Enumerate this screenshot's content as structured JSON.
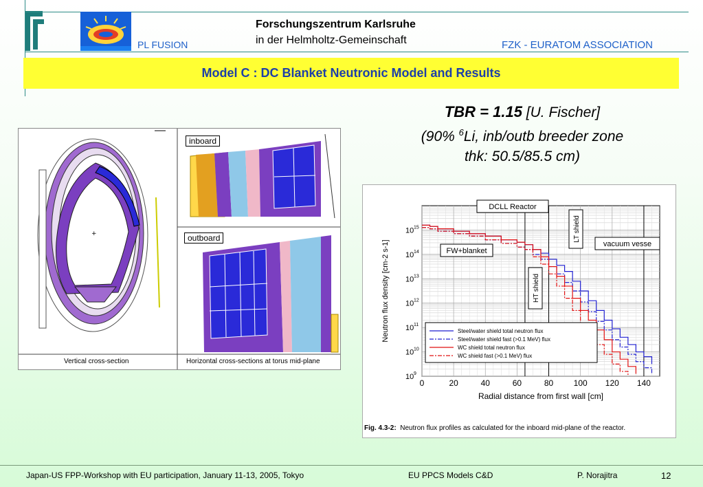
{
  "header": {
    "left_label": "PL FUSION",
    "center_title": "Forschungszentrum Karlsruhe",
    "center_subtitle": "in der Helmholtz-Gemeinschaft",
    "right_label": "FZK - EURATOM ASSOCIATION"
  },
  "slide_title": "Model C : DC Blanket Neutronic Model and Results",
  "tbr": {
    "main": "TBR = 1.15",
    "ref": "[U. Fischer]",
    "line2_pre": "(90% ",
    "line2_sup": "6",
    "line2_post": "Li, inb/outb breeder zone",
    "line3": "thk: 50.5/85.5 cm)"
  },
  "left_figure": {
    "inboard_label": "inboard",
    "outboard_label": "outboard",
    "caption_left": "Vertical cross-section",
    "caption_right": "Horizontal cross-sections at torus mid-plane"
  },
  "chart_data": {
    "type": "line",
    "title": "DCLL Reactor",
    "xlabel": "Radial distance from first wall [cm]",
    "ylabel": "Neutron flux density [cm-2 s-1]",
    "xlim": [
      0,
      150
    ],
    "ylim_log10": [
      9,
      16
    ],
    "x_ticks": [
      "0",
      "20",
      "40",
      "60",
      "80",
      "100",
      "120",
      "140"
    ],
    "y_ticks": [
      "10",
      "10",
      "10",
      "10",
      "10",
      "10",
      "10"
    ],
    "y_tick_exps": [
      "9",
      "10",
      "11",
      "12",
      "13",
      "14",
      "15"
    ],
    "x_tick_values": [
      0,
      20,
      40,
      60,
      80,
      100,
      120,
      140
    ],
    "y_tick_values": [
      9,
      10,
      11,
      12,
      13,
      14,
      15
    ],
    "vlines": [
      65,
      80,
      140
    ],
    "annotations": {
      "fw_blanket": "FW+blanket",
      "ht_shield": "HT shield",
      "lt_shield": "LT shield",
      "vacuum_vessel": "vacuum vesse"
    },
    "series": [
      {
        "name": "Steel/water shield total neutron flux",
        "color": "#1f1fd0",
        "dash": "",
        "x": [
          0,
          5,
          10,
          20,
          30,
          40,
          50,
          60,
          65,
          70,
          75,
          80,
          85,
          90,
          95,
          100,
          105,
          110,
          115,
          120,
          125,
          130,
          135,
          140,
          145
        ],
        "y_log": [
          15.2,
          15.15,
          15.05,
          14.95,
          14.85,
          14.75,
          14.6,
          14.5,
          14.4,
          14.2,
          14.05,
          13.8,
          13.55,
          13.3,
          12.9,
          12.5,
          12.1,
          11.7,
          11.3,
          10.95,
          10.6,
          10.3,
          10.0,
          9.8,
          9.5
        ]
      },
      {
        "name": "Steel/water shield fast (>0.1 MeV) flux",
        "color": "#1f1fd0",
        "dash": "6,2,2,2",
        "x": [
          0,
          5,
          10,
          20,
          30,
          40,
          50,
          60,
          65,
          70,
          75,
          80,
          85,
          90,
          95,
          100,
          105,
          110,
          115,
          120,
          125,
          130,
          135,
          140,
          145
        ],
        "y_log": [
          15.1,
          15.05,
          14.95,
          14.85,
          14.75,
          14.6,
          14.45,
          14.3,
          14.2,
          14.0,
          13.8,
          13.5,
          13.2,
          12.85,
          12.5,
          12.05,
          11.65,
          11.25,
          10.9,
          10.5,
          10.2,
          9.9,
          9.6,
          9.35,
          9.1
        ]
      },
      {
        "name": "WC shield total neutron flux",
        "color": "#e01010",
        "dash": "",
        "x": [
          0,
          5,
          10,
          20,
          30,
          40,
          50,
          60,
          65,
          70,
          75,
          80,
          85,
          90,
          95,
          100,
          105,
          110,
          115,
          120,
          125,
          130,
          135
        ],
        "y_log": [
          15.2,
          15.15,
          15.05,
          14.95,
          14.85,
          14.75,
          14.6,
          14.5,
          14.4,
          14.2,
          13.9,
          13.5,
          13.1,
          12.7,
          12.2,
          11.7,
          11.3,
          10.9,
          10.5,
          10.0,
          9.7,
          9.4,
          9.1
        ]
      },
      {
        "name": "WC shield fast (>0.1 MeV) flux",
        "color": "#e01010",
        "dash": "6,2,2,2",
        "x": [
          0,
          5,
          10,
          20,
          30,
          40,
          50,
          60,
          65,
          70,
          75,
          80,
          85,
          90,
          95,
          100,
          105,
          110,
          115,
          120,
          125,
          130
        ],
        "y_log": [
          15.1,
          15.05,
          14.95,
          14.85,
          14.75,
          14.6,
          14.45,
          14.3,
          14.2,
          13.9,
          13.6,
          13.2,
          12.7,
          12.2,
          11.7,
          11.2,
          10.7,
          10.3,
          9.9,
          9.5,
          9.2,
          9.0
        ]
      }
    ]
  },
  "chart_caption": {
    "label": "Fig. 4.3-2:",
    "text": "Neutron flux profiles as calculated for the inboard mid-plane of the reactor."
  },
  "footer": {
    "left": "Japan-US FPP-Workshop with EU participation, January 11-13, 2005, Tokyo",
    "center": "EU PPCS  Models C&D",
    "author": "P.  Norajitra",
    "page": "12"
  }
}
